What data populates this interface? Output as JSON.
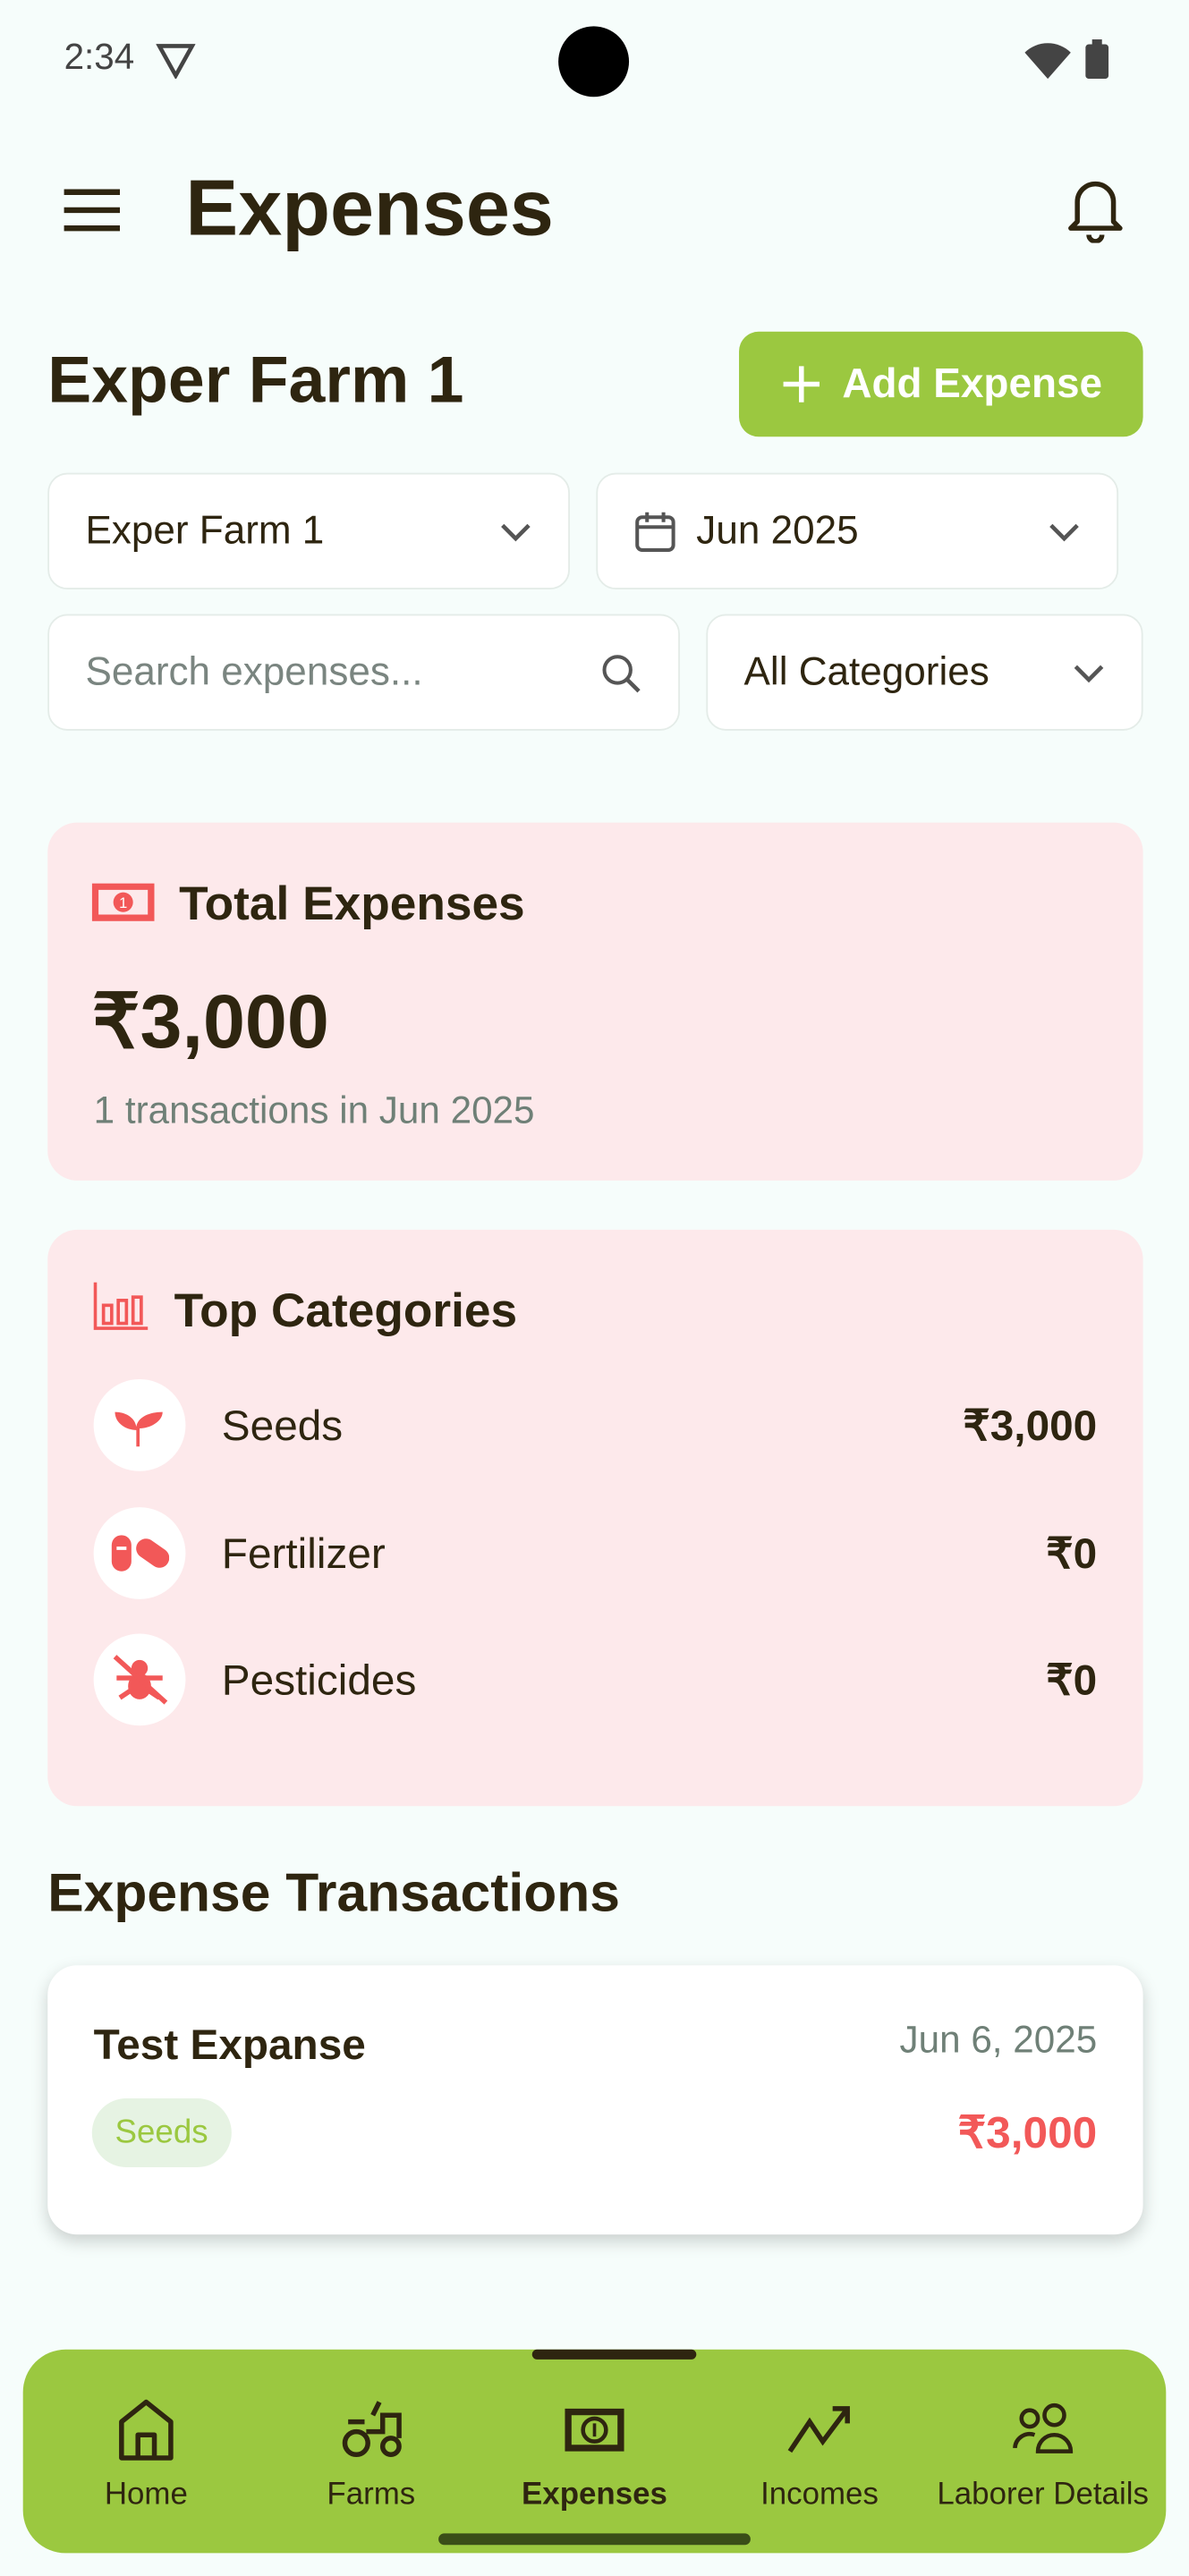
{
  "status_bar": {
    "time": "2:34"
  },
  "header": {
    "title": "Expenses",
    "menu_icon": "hamburger-icon",
    "bell_icon": "bell-icon"
  },
  "farm": {
    "title": "Exper Farm 1",
    "add_label": "Add Expense"
  },
  "filters": {
    "farm": "Exper Farm 1",
    "month": "Jun 2025",
    "search_placeholder": "Search expenses...",
    "category": "All Categories"
  },
  "total": {
    "title": "Total Expenses",
    "amount": "₹3,000",
    "subtitle": "1 transactions in Jun 2025"
  },
  "top_categories": {
    "title": "Top Categories",
    "items": [
      {
        "label": "Seeds",
        "value": "₹3,000",
        "icon": "sprout-icon"
      },
      {
        "label": "Fertilizer",
        "value": "₹0",
        "icon": "pills-icon"
      },
      {
        "label": "Pesticides",
        "value": "₹0",
        "icon": "bug-off-icon"
      }
    ]
  },
  "transactions": {
    "title": "Expense Transactions",
    "items": [
      {
        "name": "Test Expanse",
        "date": "Jun 6, 2025",
        "category": "Seeds",
        "amount": "₹3,000"
      }
    ]
  },
  "nav": {
    "items": [
      {
        "label": "Home",
        "icon": "home-icon"
      },
      {
        "label": "Farms",
        "icon": "tractor-icon"
      },
      {
        "label": "Expenses",
        "icon": "banknote-icon",
        "active": true
      },
      {
        "label": "Incomes",
        "icon": "trending-up-icon"
      },
      {
        "label": "Laborer Details",
        "icon": "users-icon"
      }
    ]
  },
  "colors": {
    "accent": "#9bc840",
    "text": "#2e2510",
    "expense_red": "#f25858",
    "card_pink": "#fde9eb"
  }
}
